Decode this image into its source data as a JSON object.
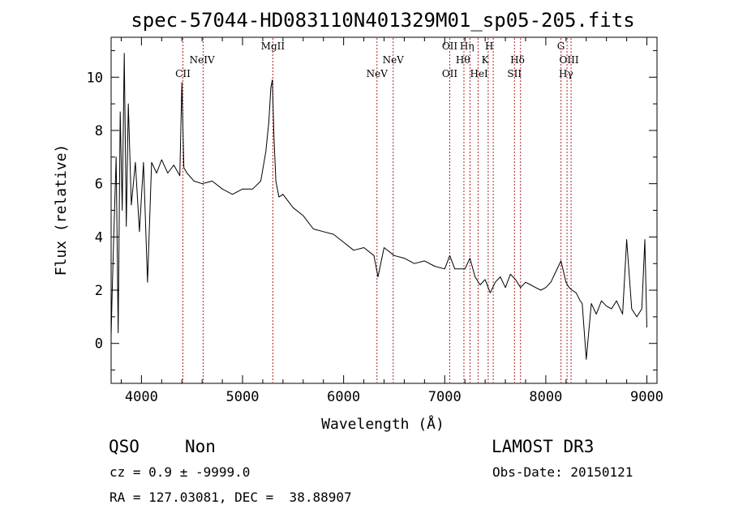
{
  "chart_data": {
    "type": "line",
    "title": "spec-57044-HD083110N401329M01_sp05-205.fits",
    "xlabel": "Wavelength (Å)",
    "ylabel": "Flux (relative)",
    "xlim": [
      3700,
      9100
    ],
    "ylim": [
      -1.5,
      11.5
    ],
    "xticks": [
      4000,
      5000,
      6000,
      7000,
      8000,
      9000
    ],
    "yticks": [
      0,
      2,
      4,
      6,
      8,
      10
    ],
    "grid": false,
    "series": [
      {
        "name": "flux",
        "x": [
          3700,
          3710,
          3730,
          3750,
          3770,
          3790,
          3810,
          3830,
          3850,
          3870,
          3900,
          3940,
          3980,
          4020,
          4060,
          4100,
          4150,
          4200,
          4260,
          4320,
          4380,
          4400,
          4420,
          4450,
          4520,
          4600,
          4700,
          4800,
          4900,
          5000,
          5100,
          5180,
          5230,
          5260,
          5280,
          5295,
          5310,
          5330,
          5360,
          5400,
          5500,
          5600,
          5700,
          5800,
          5900,
          6000,
          6100,
          6200,
          6300,
          6340,
          6400,
          6500,
          6600,
          6700,
          6800,
          6900,
          7000,
          7050,
          7100,
          7200,
          7250,
          7300,
          7350,
          7400,
          7450,
          7500,
          7550,
          7600,
          7650,
          7700,
          7750,
          7800,
          7850,
          7900,
          7950,
          8000,
          8050,
          8100,
          8150,
          8200,
          8230,
          8260,
          8300,
          8340,
          8360,
          8400,
          8450,
          8500,
          8550,
          8600,
          8650,
          8700,
          8760,
          8800,
          8850,
          8900,
          8950,
          8980,
          9000
        ],
        "y": [
          0.3,
          1.8,
          4.5,
          7.0,
          0.4,
          8.7,
          5.0,
          10.9,
          4.4,
          9.0,
          5.2,
          6.8,
          4.2,
          6.8,
          2.3,
          6.8,
          6.4,
          6.9,
          6.4,
          6.7,
          6.3,
          9.8,
          6.6,
          6.4,
          6.1,
          6.0,
          6.1,
          5.8,
          5.6,
          5.8,
          5.8,
          6.1,
          7.2,
          8.3,
          9.6,
          9.9,
          7.8,
          6.1,
          5.5,
          5.6,
          5.1,
          4.8,
          4.3,
          4.2,
          4.1,
          3.8,
          3.5,
          3.6,
          3.3,
          2.5,
          3.6,
          3.3,
          3.2,
          3.0,
          3.1,
          2.9,
          2.8,
          3.3,
          2.8,
          2.8,
          3.2,
          2.5,
          2.2,
          2.4,
          1.9,
          2.3,
          2.5,
          2.1,
          2.6,
          2.4,
          2.1,
          2.3,
          2.2,
          2.1,
          2.0,
          2.1,
          2.3,
          2.7,
          3.1,
          2.3,
          2.1,
          2.0,
          1.9,
          1.6,
          1.5,
          -0.6,
          1.5,
          1.1,
          1.6,
          1.4,
          1.3,
          1.6,
          1.1,
          3.9,
          1.3,
          1.0,
          1.3,
          3.9,
          0.6
        ]
      }
    ],
    "spectral_lines": [
      {
        "name": "CII",
        "x": 4410,
        "row": 3
      },
      {
        "name": "NeIV",
        "x": 4600,
        "row": 2
      },
      {
        "name": "MgII",
        "x": 5300,
        "row": 1
      },
      {
        "name": "NeV",
        "x": 6330,
        "row": 3
      },
      {
        "name": "NeV",
        "x": 6490,
        "row": 2
      },
      {
        "name": "OII",
        "x": 7050,
        "row": 1
      },
      {
        "name": "OII",
        "x": 7050,
        "row": 3
      },
      {
        "name": "Hη",
        "x": 7220,
        "row": 1
      },
      {
        "name": "Hθ",
        "x": 7180,
        "row": 2
      },
      {
        "name": "HeI",
        "x": 7340,
        "row": 3
      },
      {
        "name": "H",
        "x": 7440,
        "row": 1
      },
      {
        "name": "K",
        "x": 7400,
        "row": 2
      },
      {
        "name": "Hδ",
        "x": 7720,
        "row": 2
      },
      {
        "name": "SII",
        "x": 7690,
        "row": 3
      },
      {
        "name": "G",
        "x": 8150,
        "row": 1
      },
      {
        "name": "OIII",
        "x": 8230,
        "row": 2
      },
      {
        "name": "Hγ",
        "x": 8200,
        "row": 3
      }
    ],
    "marker_lines_x": [
      4410,
      4610,
      5300,
      6330,
      6490,
      7050,
      7190,
      7250,
      7330,
      7430,
      7480,
      7690,
      7750,
      8150,
      8210,
      8250
    ],
    "marker_color": "#b22222",
    "line_color": "#000000"
  },
  "info": {
    "class": "QSO",
    "subclass": "Non",
    "survey": "LAMOST DR3",
    "cz": "cz = 0.9 ± -9999.0",
    "obs_date": "Obs-Date: 20150121",
    "coords": "RA = 127.03081, DEC =  38.88907"
  }
}
